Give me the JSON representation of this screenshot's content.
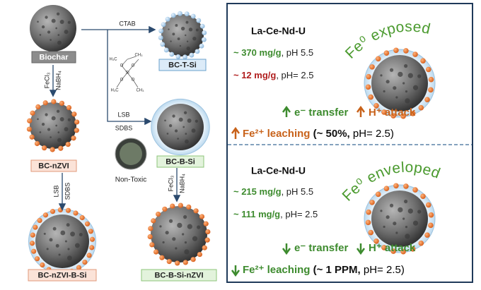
{
  "left": {
    "nodes": {
      "biochar": "Biochar",
      "bc_t_si": "BC-T-Si",
      "bc_nzvi": "BC-nZVI",
      "bc_b_si": "BC-B-Si",
      "bc_nzvi_b_si": "BC-nZVI-B-Si",
      "bc_b_si_nzvi": "BC-B-Si-nZVI"
    },
    "reagents": {
      "ctab": "CTAB",
      "lsb_1": "LSB",
      "sdbs_1": "SDBS",
      "fecl3_1": "FeCl₃",
      "nabh4_1": "NaBH₄",
      "lsb_2": "LSB",
      "sdbs_2": "SDBS",
      "fecl3_2": "FeCl₃",
      "nabh4_2": "NaBH₄"
    },
    "non_toxic": "Non-Toxic",
    "structure_atoms": [
      "CH₃",
      "O",
      "O",
      "Si",
      "O",
      "O",
      "H₃C",
      "H₃C",
      "CH₃"
    ]
  },
  "right": {
    "panels": [
      {
        "material": "La-Ce-Nd-U",
        "capacities": [
          {
            "amount": "~ 370 mg/g",
            "condition": ", pH 5.5"
          },
          {
            "amount": "~ 12 mg/g",
            "condition": ", pH= 2.5"
          }
        ],
        "surface": "Fe⁰ exposed",
        "electron": "e⁻ transfer",
        "proton": "H⁺ attack",
        "leaching": "Fe²⁺ leaching",
        "leaching_amount": " (~ 50%,",
        "leaching_condition": " pH= 2.5)"
      },
      {
        "material": "La-Ce-Nd-U",
        "capacities": [
          {
            "amount": "~ 215 mg/g",
            "condition": ", pH 5.5"
          },
          {
            "amount": "~ 111 mg/g",
            "condition": ", pH= 2.5"
          }
        ],
        "surface": "Fe⁰ enveloped",
        "electron": "e⁻ transfer",
        "proton": "H⁺ attack",
        "leaching": "Fe²⁺ leaching",
        "leaching_amount": " (~ 1 PPM,",
        "leaching_condition": " pH= 2.5)"
      }
    ]
  }
}
